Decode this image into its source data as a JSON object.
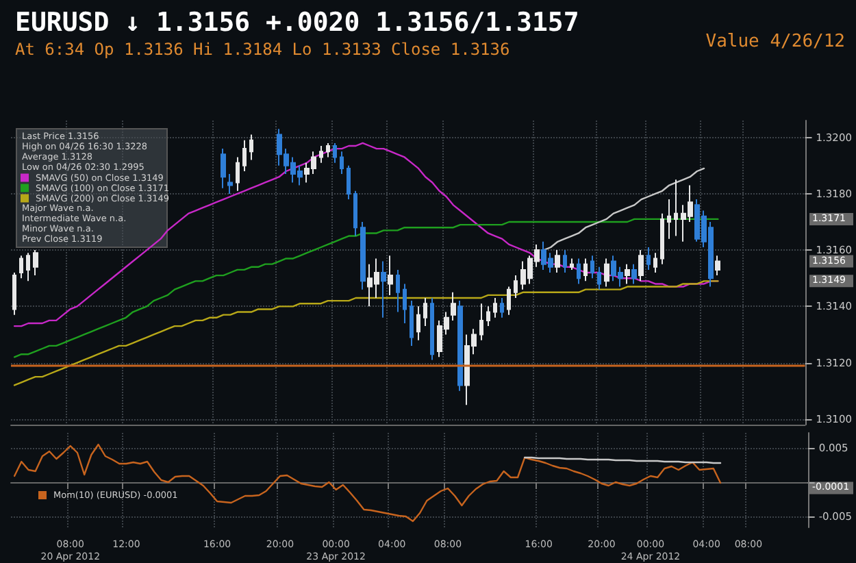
{
  "chart_data": [
    {
      "type": "candlestick",
      "title": "EURUSD ↓ 1.3156 +.0020 1.3156/1.3157",
      "subtitle": "At 6:34 Op 1.3136 Hi 1.3184 Lo 1.3133 Close 1.3136",
      "categories": [
        null,
        null,
        null,
        null,
        null,
        null,
        null,
        null,
        null,
        null,
        null,
        null,
        null,
        null,
        null,
        null,
        null,
        null,
        null,
        null,
        null,
        null,
        null,
        null,
        null,
        null,
        null,
        null,
        null,
        null,
        null,
        null,
        null,
        null,
        null,
        null,
        null,
        null,
        null,
        null,
        null,
        null,
        null,
        null,
        null,
        null,
        null,
        null,
        null,
        null,
        null,
        null,
        null,
        null,
        null,
        null,
        null,
        null,
        null,
        null,
        null,
        null,
        null,
        null,
        null,
        null,
        null,
        null,
        null,
        null,
        null,
        null,
        null,
        null,
        null,
        null,
        null,
        null,
        null,
        null,
        null,
        null,
        null,
        null,
        null,
        null,
        null,
        null,
        null,
        null,
        null,
        null,
        null,
        null,
        null,
        null,
        null,
        null,
        null,
        null,
        null,
        null,
        null,
        null,
        null,
        null,
        null,
        null,
        null,
        null,
        null,
        null,
        null,
        null
      ],
      "colors": [
        "#e8e8e8",
        "#e8e8e8",
        "#e8e8e8",
        "#e8e8e8",
        null,
        null,
        null,
        null,
        null,
        null,
        null,
        null,
        null,
        null,
        null,
        null,
        null,
        null,
        null,
        null,
        null,
        null,
        null,
        null,
        null,
        null,
        null,
        null,
        null,
        null,
        "#2f7fd8",
        "#2f7fd8",
        "#e8e8e8",
        "#e8e8e8",
        "#e8e8e8",
        null,
        null,
        null,
        "#2f7fd8",
        "#2f7fd8",
        "#2f7fd8",
        "#2f7fd8",
        "#e8e8e8",
        "#e8e8e8",
        "#e8e8e8",
        "#e8e8e8",
        "#2f7fd8",
        "#2f7fd8",
        "#2f7fd8",
        "#2f7fd8",
        "#2f7fd8",
        "#e8e8e8",
        "#e8e8e8",
        "#2f7fd8",
        "#e8e8e8",
        "#2f7fd8",
        "#2f7fd8",
        "#2f7fd8",
        "#e8e8e8",
        "#e8e8e8",
        "#2f7fd8",
        "#e8e8e8",
        "#e8e8e8",
        "#e8e8e8",
        "#2f7fd8",
        "#e8e8e8",
        "#e8e8e8",
        "#e8e8e8",
        "#e8e8e8",
        "#e8e8e8",
        "#2f7fd8",
        "#e8e8e8",
        "#e8e8e8",
        "#e8e8e8",
        "#e8e8e8",
        "#e8e8e8",
        "#2f7fd8",
        "#2f7fd8",
        "#e8e8e8",
        "#2f7fd8",
        "#e8e8e8",
        "#2f7fd8",
        "#e8e8e8",
        "#2f7fd8",
        "#2f7fd8",
        "#e8e8e8",
        "#2f7fd8",
        "#2f7fd8",
        "#e8e8e8",
        "#2f7fd8",
        "#e8e8e8",
        "#2f7fd8",
        "#e8e8e8",
        "#e8e8e8",
        "#e8e8e8",
        "#e8e8e8",
        "#e8e8e8",
        "#e8e8e8",
        "#2f7fd8",
        "#2f7fd8",
        "#2f7fd8",
        "#e8e8e8",
        null,
        null,
        null,
        null,
        null,
        null,
        null,
        null,
        null,
        null,
        null,
        null
      ],
      "ohlc": [
        [
          1.3139,
          1.3152,
          1.3137,
          1.3151
        ],
        [
          1.3152,
          1.3158,
          1.315,
          1.3157
        ],
        [
          1.3153,
          1.3159,
          1.3149,
          1.3158
        ],
        [
          1.3154,
          1.316,
          1.3151,
          1.3159
        ],
        null,
        null,
        null,
        null,
        null,
        null,
        null,
        null,
        null,
        null,
        null,
        null,
        null,
        null,
        null,
        null,
        null,
        null,
        null,
        null,
        null,
        null,
        null,
        null,
        null,
        null,
        [
          1.3194,
          1.3196,
          1.3182,
          1.3186
        ],
        [
          1.3184,
          1.3187,
          1.318,
          1.3183
        ],
        [
          1.3184,
          1.3193,
          1.3181,
          1.3191
        ],
        [
          1.319,
          1.3199,
          1.3188,
          1.3196
        ],
        [
          1.3195,
          1.3201,
          1.3192,
          1.3199
        ],
        null,
        null,
        null,
        [
          1.3201,
          1.3203,
          1.319,
          1.3194
        ],
        [
          1.3194,
          1.3196,
          1.3187,
          1.319
        ],
        [
          1.3191,
          1.3193,
          1.3184,
          1.3187
        ],
        [
          1.3188,
          1.319,
          1.3183,
          1.3186
        ],
        [
          1.3187,
          1.3191,
          1.3184,
          1.3189
        ],
        [
          1.3189,
          1.3195,
          1.3187,
          1.3193
        ],
        [
          1.3193,
          1.3197,
          1.3191,
          1.3195
        ],
        [
          1.3195,
          1.3198,
          1.3193,
          1.3197
        ],
        [
          1.3197,
          1.3198,
          1.3191,
          1.3193
        ],
        [
          1.3193,
          1.3195,
          1.3187,
          1.3189
        ],
        [
          1.3189,
          1.319,
          1.3178,
          1.318
        ],
        [
          1.318,
          1.3181,
          1.3165,
          1.3168
        ],
        [
          1.3168,
          1.317,
          1.3146,
          1.3149
        ],
        [
          1.3147,
          1.3155,
          1.314,
          1.315
        ],
        [
          1.3148,
          1.3157,
          1.3143,
          1.3152
        ],
        [
          1.3152,
          1.3156,
          1.3136,
          1.3149
        ],
        [
          1.3148,
          1.3158,
          1.3144,
          1.3151
        ],
        [
          1.3151,
          1.3153,
          1.3138,
          1.3145
        ],
        [
          1.3146,
          1.3148,
          1.3134,
          1.3139
        ],
        [
          1.314,
          1.3142,
          1.3126,
          1.3129
        ],
        [
          1.3131,
          1.314,
          1.3128,
          1.3137
        ],
        [
          1.3136,
          1.3143,
          1.3133,
          1.3141
        ],
        [
          1.3141,
          1.3143,
          1.3121,
          1.3123
        ],
        [
          1.3124,
          1.3135,
          1.3122,
          1.3133
        ],
        [
          1.3132,
          1.3138,
          1.313,
          1.3136
        ],
        [
          1.3137,
          1.3145,
          1.3135,
          1.3141
        ],
        [
          1.314,
          1.3142,
          1.311,
          1.3112
        ],
        [
          1.3112,
          1.313,
          1.3105,
          1.3126
        ],
        [
          1.3126,
          1.3132,
          1.3123,
          1.313
        ],
        [
          1.313,
          1.3141,
          1.3128,
          1.3135
        ],
        [
          1.3135,
          1.314,
          1.3133,
          1.3138
        ],
        [
          1.3138,
          1.3143,
          1.3136,
          1.3141
        ],
        [
          1.3141,
          1.3143,
          1.3136,
          1.3138
        ],
        [
          1.3139,
          1.3147,
          1.3137,
          1.3146
        ],
        [
          1.3145,
          1.3151,
          1.3143,
          1.3149
        ],
        [
          1.3148,
          1.3156,
          1.3146,
          1.3153
        ],
        [
          1.315,
          1.3158,
          1.3148,
          1.3157
        ],
        [
          1.3156,
          1.3162,
          1.3154,
          1.316
        ],
        [
          1.316,
          1.3163,
          1.3153,
          1.3155
        ],
        [
          1.3157,
          1.3159,
          1.3152,
          1.3154
        ],
        [
          1.3154,
          1.316,
          1.3152,
          1.3158
        ],
        [
          1.3158,
          1.316,
          1.3152,
          1.3154
        ],
        [
          1.3154,
          1.3157,
          1.3153,
          1.3155
        ],
        [
          1.3155,
          1.3157,
          1.3148,
          1.315
        ],
        [
          1.3151,
          1.3157,
          1.3149,
          1.3155
        ],
        [
          1.3156,
          1.3158,
          1.315,
          1.3152
        ],
        [
          1.3152,
          1.3154,
          1.3146,
          1.3148
        ],
        [
          1.3149,
          1.3157,
          1.3147,
          1.3155
        ],
        [
          1.3156,
          1.3158,
          1.3149,
          1.3151
        ],
        [
          1.3152,
          1.3154,
          1.3147,
          1.315
        ],
        [
          1.3151,
          1.3155,
          1.3148,
          1.3153
        ],
        [
          1.3153,
          1.3155,
          1.3148,
          1.315
        ],
        [
          1.3151,
          1.316,
          1.3149,
          1.3158
        ],
        [
          1.3158,
          1.3161,
          1.3153,
          1.3155
        ],
        [
          1.3154,
          1.3159,
          1.3152,
          1.3157
        ],
        [
          1.3157,
          1.3173,
          1.3155,
          1.3171
        ],
        [
          1.317,
          1.3178,
          1.3164,
          1.3172
        ],
        [
          1.3171,
          1.3185,
          1.3165,
          1.3173
        ],
        [
          1.3171,
          1.3176,
          1.3163,
          1.3173
        ],
        [
          1.3172,
          1.3183,
          1.317,
          1.3177
        ],
        [
          1.3176,
          1.3178,
          1.3163,
          1.3164
        ],
        [
          1.3172,
          1.3174,
          1.3161,
          1.3163
        ],
        [
          1.3168,
          1.317,
          1.3147,
          1.315
        ],
        [
          1.3153,
          1.3158,
          1.3151,
          1.3156
        ],
        null,
        null,
        null,
        null,
        null,
        null,
        null,
        null,
        null,
        null,
        null,
        null
      ],
      "series": [
        {
          "name": "SMAVG (50) on Close 1.3149",
          "type": "line",
          "color": "#c828c8",
          "values": [
            1.3133,
            1.3133,
            1.3134,
            1.3134,
            1.3134,
            1.3135,
            1.3135,
            1.3137,
            1.3139,
            1.314,
            1.3142,
            1.3144,
            1.3146,
            1.3148,
            1.315,
            1.3152,
            1.3154,
            1.3156,
            1.3158,
            1.316,
            1.3162,
            1.3164,
            1.3167,
            1.3169,
            1.3171,
            1.3173,
            1.3174,
            1.3175,
            1.3176,
            1.3177,
            1.3178,
            1.3179,
            1.318,
            1.3181,
            1.3182,
            1.3183,
            1.3184,
            1.3185,
            1.3186,
            1.3188,
            1.3189,
            1.319,
            1.3191,
            1.3193,
            1.3194,
            1.3195,
            1.3196,
            1.3196,
            1.3197,
            1.3197,
            1.3198,
            1.3197,
            1.3196,
            1.3196,
            1.3195,
            1.3194,
            1.3193,
            1.3191,
            1.3189,
            1.3186,
            1.3184,
            1.3181,
            1.3179,
            1.3176,
            1.3174,
            1.3172,
            1.317,
            1.3168,
            1.3166,
            1.3165,
            1.3164,
            1.3162,
            1.3161,
            1.316,
            1.3159,
            1.3157,
            1.3156,
            1.3155,
            1.3155,
            1.3154,
            1.3154,
            1.3153,
            1.3152,
            1.3152,
            1.3152,
            1.3151,
            1.3151,
            1.315,
            1.315,
            1.315,
            1.3149,
            1.3149,
            1.3148,
            1.3148,
            1.3147,
            1.3147,
            1.3147,
            1.3148,
            1.3148,
            1.3148,
            1.3149,
            1.3149,
            null,
            null,
            null,
            null,
            null,
            null,
            null,
            null,
            null,
            null,
            null,
            null
          ]
        },
        {
          "name": "SMAVG (100) on Close 1.3171",
          "type": "line",
          "color": "#1fa01f",
          "values": [
            1.3122,
            1.3123,
            1.3123,
            1.3124,
            1.3125,
            1.3126,
            1.3126,
            1.3127,
            1.3128,
            1.3129,
            1.313,
            1.3131,
            1.3132,
            1.3133,
            1.3134,
            1.3135,
            1.3136,
            1.3138,
            1.3139,
            1.314,
            1.3142,
            1.3143,
            1.3144,
            1.3146,
            1.3147,
            1.3148,
            1.3149,
            1.3149,
            1.315,
            1.3151,
            1.3151,
            1.3152,
            1.3153,
            1.3153,
            1.3154,
            1.3154,
            1.3155,
            1.3155,
            1.3156,
            1.3157,
            1.3157,
            1.3158,
            1.3159,
            1.316,
            1.3161,
            1.3162,
            1.3163,
            1.3164,
            1.3165,
            1.3165,
            1.3166,
            1.3166,
            1.3166,
            1.3167,
            1.3167,
            1.3167,
            1.3168,
            1.3168,
            1.3168,
            1.3168,
            1.3168,
            1.3168,
            1.3168,
            1.3168,
            1.3169,
            1.3169,
            1.3169,
            1.3169,
            1.3169,
            1.3169,
            1.3169,
            1.317,
            1.317,
            1.317,
            1.317,
            1.317,
            1.317,
            1.317,
            1.317,
            1.317,
            1.317,
            1.317,
            1.317,
            1.317,
            1.317,
            1.317,
            1.317,
            1.317,
            1.317,
            1.3171,
            1.3171,
            1.3171,
            1.3171,
            1.3171,
            1.3171,
            1.3171,
            1.3171,
            1.3171,
            1.3171,
            1.3171,
            1.3171,
            1.3171,
            null,
            null,
            null,
            null,
            null,
            null,
            null,
            null,
            null,
            null,
            null,
            null
          ]
        },
        {
          "name": "SMAVG (200) on Close 1.3149",
          "type": "line",
          "color": "#b8a818",
          "values": [
            1.3112,
            1.3113,
            1.3114,
            1.3115,
            1.3115,
            1.3116,
            1.3117,
            1.3118,
            1.3119,
            1.312,
            1.3121,
            1.3122,
            1.3123,
            1.3124,
            1.3125,
            1.3126,
            1.3126,
            1.3127,
            1.3128,
            1.3129,
            1.313,
            1.3131,
            1.3132,
            1.3133,
            1.3133,
            1.3134,
            1.3135,
            1.3135,
            1.3136,
            1.3136,
            1.3137,
            1.3137,
            1.3138,
            1.3138,
            1.3138,
            1.3139,
            1.3139,
            1.3139,
            1.314,
            1.314,
            1.314,
            1.3141,
            1.3141,
            1.3141,
            1.3141,
            1.3142,
            1.3142,
            1.3142,
            1.3142,
            1.3143,
            1.3143,
            1.3143,
            1.3143,
            1.3143,
            1.3143,
            1.3143,
            1.3143,
            1.3143,
            1.3143,
            1.3143,
            1.3143,
            1.3143,
            1.3143,
            1.3143,
            1.3143,
            1.3143,
            1.3143,
            1.3143,
            1.3144,
            1.3144,
            1.3144,
            1.3144,
            1.3144,
            1.3145,
            1.3145,
            1.3145,
            1.3145,
            1.3145,
            1.3145,
            1.3145,
            1.3145,
            1.3145,
            1.3146,
            1.3146,
            1.3146,
            1.3146,
            1.3146,
            1.3146,
            1.3147,
            1.3147,
            1.3147,
            1.3147,
            1.3147,
            1.3147,
            1.3147,
            1.3147,
            1.3148,
            1.3148,
            1.3148,
            1.3149,
            1.3149,
            1.3149,
            null,
            null,
            null,
            null,
            null,
            null,
            null,
            null,
            null,
            null,
            null,
            null
          ]
        },
        {
          "type": "line",
          "color": "#c8c8c8",
          "values": [
            null,
            null,
            null,
            null,
            null,
            null,
            null,
            null,
            null,
            null,
            null,
            null,
            null,
            null,
            null,
            null,
            null,
            null,
            null,
            null,
            null,
            null,
            null,
            null,
            null,
            null,
            null,
            null,
            null,
            null,
            null,
            null,
            null,
            null,
            null,
            null,
            null,
            null,
            null,
            null,
            null,
            null,
            null,
            null,
            null,
            null,
            null,
            null,
            null,
            null,
            null,
            null,
            null,
            null,
            null,
            null,
            null,
            null,
            null,
            null,
            null,
            null,
            null,
            null,
            null,
            null,
            null,
            null,
            null,
            null,
            null,
            null,
            null,
            null,
            null,
            null,
            1.316,
            1.3161,
            1.3163,
            1.3164,
            1.3165,
            1.3166,
            1.3168,
            1.3169,
            1.317,
            1.3171,
            1.3173,
            1.3174,
            1.3175,
            1.3176,
            1.3178,
            1.3179,
            1.318,
            1.3181,
            1.3183,
            1.3184,
            1.3185,
            1.3186,
            1.3188,
            1.3189,
            null,
            null,
            null,
            null,
            null,
            null,
            null,
            null,
            null,
            null,
            null,
            null,
            null,
            null
          ]
        }
      ],
      "ylim": [
        1.3098,
        1.3206
      ],
      "yticks": [
        {
          "value": 1.31,
          "label": "1.3100"
        },
        {
          "value": 1.312,
          "label": "1.3120"
        },
        {
          "value": 1.314,
          "label": "1.3140"
        },
        {
          "value": 1.316,
          "label": "1.3160"
        },
        {
          "value": 1.318,
          "label": "1.3180"
        },
        {
          "value": 1.32,
          "label": "1.3200"
        }
      ],
      "ref_lines": [
        {
          "axis": "y",
          "value": 1.3119,
          "color": "#c8641e"
        }
      ],
      "annotations": [
        "Value 4/26/12",
        "Last Price 1.3156",
        "High on 04/26 16:30 1.3228",
        "Average 1.3128",
        "Low on 04/26 02:30 1.2995",
        "Major Wave n.a.",
        "Intermediate Wave n.a.",
        "Minor Wave n.a.",
        "Prev Close 1.3119",
        "1.3171",
        "1.3156",
        "1.3149"
      ],
      "legend": "top left",
      "grid": true,
      "tick_labels": "y",
      "marker": "none"
    },
    {
      "type": "line",
      "categories": [
        null,
        null,
        null,
        null,
        null,
        null,
        null,
        null,
        "08:00\n20 Apr 2012",
        null,
        null,
        null,
        null,
        null,
        null,
        null,
        "12:00",
        null,
        null,
        null,
        null,
        null,
        null,
        null,
        null,
        null,
        null,
        null,
        null,
        "16:00",
        null,
        null,
        null,
        null,
        null,
        null,
        null,
        null,
        "20:00",
        null,
        null,
        null,
        null,
        null,
        null,
        null,
        "00:00\n23 Apr 2012",
        null,
        null,
        null,
        null,
        null,
        null,
        null,
        "04:00",
        null,
        null,
        null,
        null,
        null,
        null,
        null,
        "08:00",
        null,
        null,
        null,
        null,
        null,
        null,
        null,
        null,
        null,
        null,
        null,
        null,
        "16:00",
        null,
        null,
        null,
        null,
        null,
        null,
        null,
        null,
        "20:00",
        null,
        null,
        null,
        null,
        null,
        null,
        "00:00\n24 Apr 2012",
        null,
        null,
        null,
        null,
        null,
        null,
        null,
        "04:00",
        null,
        null,
        null,
        null,
        null,
        "08:00",
        null,
        null,
        null,
        null,
        null,
        null,
        null,
        null
      ],
      "series": [
        {
          "name": "Mom(10) (EURUSD) -0.0001",
          "color": "#c8641e",
          "values": [
            0.0009,
            0.003,
            0.0018,
            0.0016,
            0.0038,
            0.0045,
            0.0034,
            0.0043,
            0.0053,
            0.0043,
            0.0011,
            0.004,
            0.0055,
            0.0038,
            0.0033,
            0.0027,
            0.0027,
            0.0029,
            0.0027,
            0.003,
            0.0015,
            0.0003,
            0.0,
            0.0008,
            0.0009,
            0.0009,
            0.0002,
            -0.0005,
            -0.0016,
            -0.0028,
            -0.0029,
            -0.003,
            -0.0025,
            -0.002,
            -0.002,
            -0.0019,
            -0.0013,
            -0.0002,
            0.0009,
            0.001,
            0.0004,
            -0.0002,
            -0.0004,
            -0.0006,
            -0.0007,
            0.0,
            -0.0011,
            -0.0004,
            -0.0015,
            -0.0027,
            -0.004,
            -0.0041,
            -0.0043,
            -0.0045,
            -0.0047,
            -0.0049,
            -0.005,
            -0.0057,
            -0.0045,
            -0.0027,
            -0.002,
            -0.0013,
            -0.0009,
            -0.002,
            -0.0034,
            -0.002,
            -0.001,
            -0.0003,
            0.0001,
            0.0002,
            0.0016,
            0.0007,
            0.0007,
            0.0036,
            0.0033,
            0.0031,
            0.0028,
            0.0024,
            0.0021,
            0.002,
            0.0016,
            0.0013,
            0.0009,
            0.0004,
            -0.0002,
            -0.0005,
            0.0,
            -0.0003,
            -0.0005,
            -0.0002,
            0.0004,
            0.0009,
            0.0007,
            0.002,
            0.0023,
            0.0018,
            0.0024,
            0.0029,
            0.0018,
            0.0019,
            0.002,
            -0.0001,
            null,
            null,
            null,
            null,
            null,
            null,
            null,
            null,
            null,
            null,
            null,
            null
          ]
        },
        {
          "color": "#c8c8c8",
          "values": [
            null,
            null,
            null,
            null,
            null,
            null,
            null,
            null,
            null,
            null,
            null,
            null,
            null,
            null,
            null,
            null,
            null,
            null,
            null,
            null,
            null,
            null,
            null,
            null,
            null,
            null,
            null,
            null,
            null,
            null,
            null,
            null,
            null,
            null,
            null,
            null,
            null,
            null,
            null,
            null,
            null,
            null,
            null,
            null,
            null,
            null,
            null,
            null,
            null,
            null,
            null,
            null,
            null,
            null,
            null,
            null,
            null,
            null,
            null,
            null,
            null,
            null,
            null,
            null,
            null,
            null,
            null,
            null,
            null,
            null,
            null,
            null,
            null,
            0.0036,
            0.0036,
            0.0035,
            0.0035,
            0.0035,
            0.0035,
            0.0034,
            0.0034,
            0.0034,
            0.0033,
            0.0033,
            0.0033,
            0.0033,
            0.0032,
            0.0032,
            0.0032,
            0.0031,
            0.0031,
            0.0031,
            0.0031,
            0.003,
            0.003,
            0.003,
            0.0029,
            0.0029,
            0.0029,
            0.0029,
            0.0028,
            0.0028,
            null,
            null,
            null,
            null,
            null,
            null,
            null,
            null,
            null,
            null,
            null,
            null
          ]
        }
      ],
      "ylim": [
        -0.0066,
        0.0072
      ],
      "yticks": [
        -0.005,
        {
          "value": 0,
          "label": null
        },
        0.005
      ],
      "annotations": [
        "-0.0001"
      ],
      "legend": "left",
      "grid": true,
      "marker": "none"
    }
  ]
}
